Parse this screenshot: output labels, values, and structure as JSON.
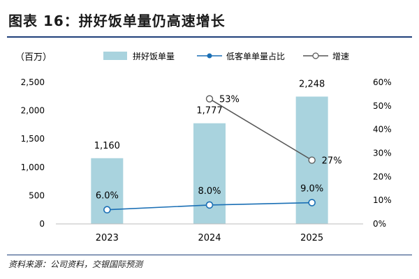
{
  "figure": {
    "title": "图表 16：拼好饭单量仍高速增长",
    "source": "资料来源：公司资料，交银国际预测"
  },
  "chart_data": {
    "type": "bar",
    "title": "图表 16：拼好饭单量仍高速增长",
    "categories": [
      "2023",
      "2024",
      "2025"
    ],
    "unit_label": "（百万）",
    "legend_position": "top",
    "series": [
      {
        "name": "拼好饭单量",
        "type": "bar",
        "axis": "left",
        "values": [
          1160,
          1777,
          2248
        ],
        "labels": [
          "1,160",
          "1,777",
          "2,248"
        ],
        "color": "#a9d3de"
      },
      {
        "name": "低客单单量占比",
        "type": "line",
        "axis": "right",
        "values": [
          6.0,
          8.0,
          9.0
        ],
        "labels": [
          "6.0%",
          "8.0%",
          "9.0%"
        ],
        "color": "#1a6fb5",
        "marker": "circle"
      },
      {
        "name": "增速",
        "type": "line",
        "axis": "right",
        "values": [
          null,
          53,
          27
        ],
        "labels": [
          "",
          "53%",
          "27%"
        ],
        "color": "#555555",
        "marker": "open-circle"
      }
    ],
    "y_left": {
      "min": 0,
      "max": 2500,
      "ticks": [
        0,
        500,
        1000,
        1500,
        2000,
        2500
      ],
      "tick_labels": [
        "0",
        "500",
        "1,000",
        "1,500",
        "2,000",
        "2,500"
      ]
    },
    "y_right": {
      "min": 0,
      "max": 60,
      "ticks": [
        0,
        10,
        20,
        30,
        40,
        50,
        60
      ],
      "tick_labels": [
        "0%",
        "10%",
        "20%",
        "30%",
        "40%",
        "50%",
        "60%"
      ]
    },
    "grid": false
  }
}
